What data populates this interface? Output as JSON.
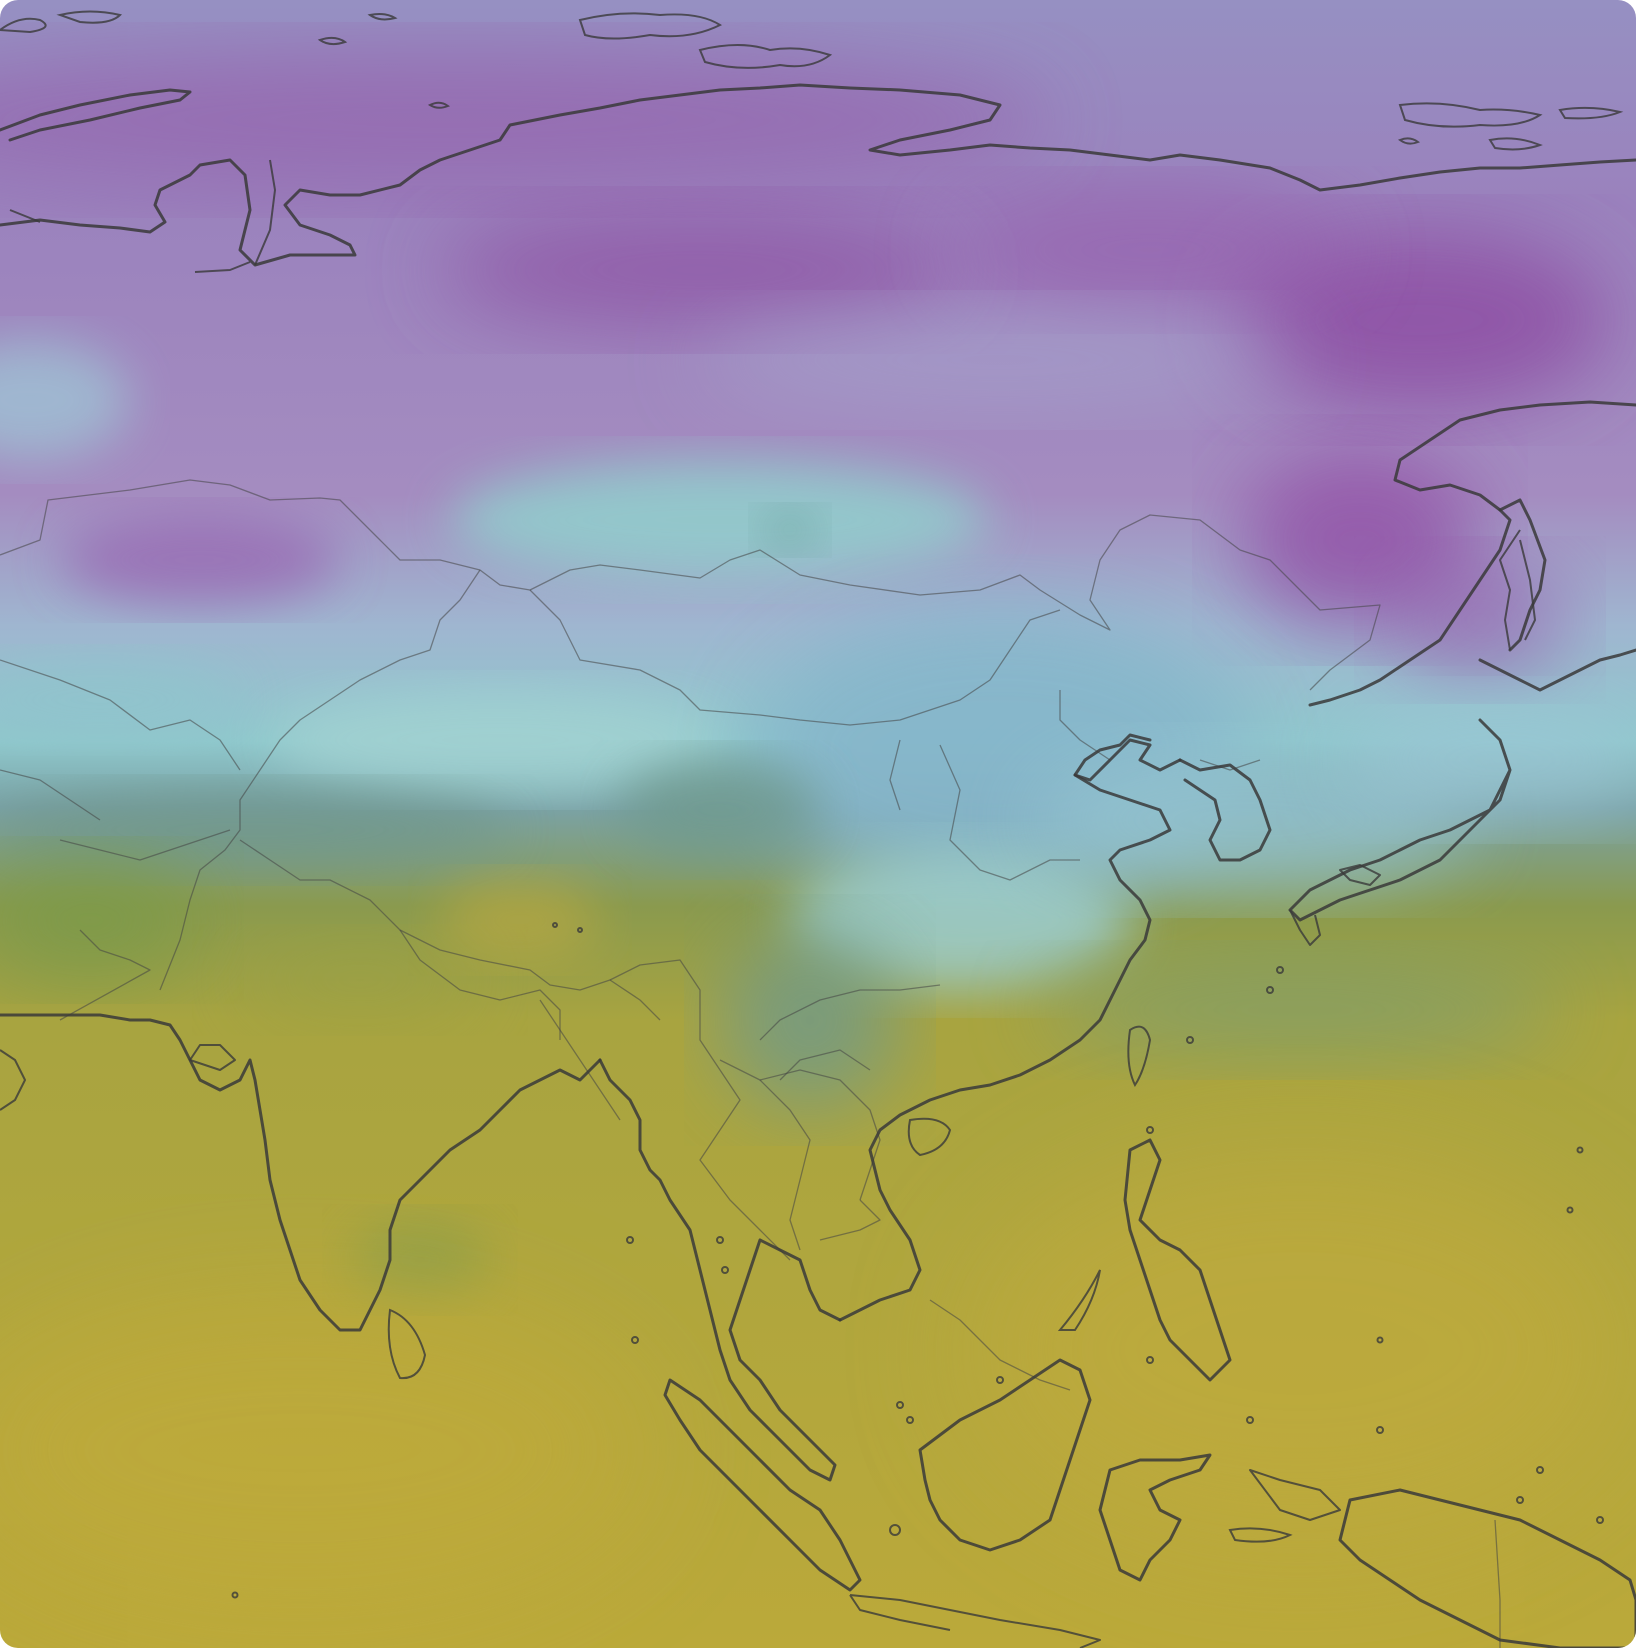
{
  "map": {
    "layer": "temperature",
    "region_view": "Asia",
    "colors": {
      "cold": "#8f5ea8",
      "cool_lavender": "#9a88bd",
      "cyan": "#8ec7c9",
      "teal_blue": "#7fa9c4",
      "olive_green": "#7f9a4a",
      "warm_yellow": "#bca83c"
    }
  }
}
